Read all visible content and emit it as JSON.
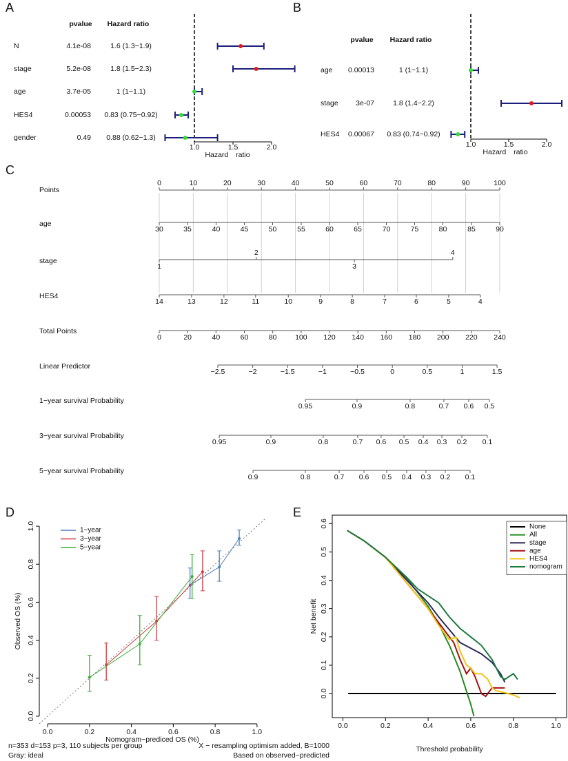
{
  "chart_data": [
    {
      "type": "forest",
      "panel": "A",
      "columns": [
        "pvalue",
        "Hazard ratio"
      ],
      "categories": [
        "N",
        "stage",
        "age",
        "HES4",
        "gender"
      ],
      "pvalues": [
        "4.1e-08",
        "5.2e-08",
        "3.7e-05",
        "0.00053",
        "0.49"
      ],
      "values": [
        1.6,
        1.8,
        1,
        0.83,
        0.88
      ],
      "value_labels": [
        "1.6 (1.3−1.9)",
        "1.8 (1.5−2.3)",
        "1 (1−1.1)",
        "0.83 (0.75−0.92)",
        "0.88 (0.62−1.3)"
      ],
      "lower": [
        1.3,
        1.5,
        1,
        0.75,
        0.62
      ],
      "upper": [
        1.9,
        2.3,
        1.1,
        0.92,
        1.3
      ],
      "point_colors": [
        "#e41a1c",
        "#e41a1c",
        "#33dd33",
        "#33dd33",
        "#33dd33"
      ],
      "ci_color": "#1a1f7a",
      "ref": 1,
      "xlim": [
        0.6,
        2.35
      ],
      "xticks": [
        {
          "value": 1,
          "label": "1.0"
        },
        {
          "value": 1.5,
          "label": "1.5"
        },
        {
          "value": 2,
          "label": "2.0"
        }
      ],
      "xlabel": "Hazard ratio"
    },
    {
      "type": "forest",
      "panel": "B",
      "columns": [
        "pvalue",
        "Hazard ratio"
      ],
      "categories": [
        "age",
        "stage",
        "HES4"
      ],
      "pvalues": [
        "0.00013",
        "3e-07",
        "0.00067"
      ],
      "values": [
        1,
        1.8,
        0.83
      ],
      "value_labels": [
        "1 (1−1.1)",
        "1.8 (1.4−2.2)",
        "0.83 (0.74−0.92)"
      ],
      "lower": [
        1,
        1.4,
        0.74
      ],
      "upper": [
        1.1,
        2.2,
        0.92
      ],
      "point_colors": [
        "#33dd33",
        "#e41a1c",
        "#33dd33"
      ],
      "ci_color": "#1a1f7a",
      "ref": 1,
      "xlim": [
        0.7,
        2.25
      ],
      "xticks": [
        {
          "value": 1,
          "label": "1.0"
        },
        {
          "value": 1.5,
          "label": "1.5"
        },
        {
          "value": 2,
          "label": "2.0"
        }
      ],
      "xlabel": "Hazard ratio"
    },
    {
      "type": "nomogram",
      "panel": "C",
      "points_lim": [
        0,
        100
      ],
      "total_lim": [
        0,
        240
      ],
      "grid": true,
      "rows": [
        {
          "name": "Points",
          "axis": "points",
          "ticks": [
            0,
            10,
            20,
            30,
            40,
            50,
            60,
            70,
            80,
            90,
            100
          ]
        },
        {
          "name": "age",
          "axis": "points",
          "ticks": [
            30,
            35,
            40,
            45,
            50,
            55,
            60,
            65,
            70,
            75,
            80,
            85,
            90
          ],
          "at": [
            0,
            8.3,
            16.7,
            25,
            33.3,
            41.7,
            50,
            58.3,
            66.7,
            75,
            83.3,
            91.7,
            100
          ]
        },
        {
          "name": "stage",
          "axis": "points",
          "ticks": [
            1,
            2,
            3,
            4
          ],
          "at": [
            0,
            28.5,
            57.3,
            86.2
          ],
          "label_side": [
            "below",
            "above",
            "below",
            "above"
          ]
        },
        {
          "name": "HES4",
          "axis": "points",
          "ticks": [
            14,
            13,
            12,
            11,
            10,
            9,
            8,
            7,
            6,
            5,
            4
          ],
          "at": [
            0,
            9.5,
            19,
            28.3,
            37.9,
            47.4,
            56.7,
            66.2,
            75.5,
            85,
            94.3
          ]
        },
        {
          "name": "Total Points",
          "axis": "total",
          "ticks": [
            0,
            20,
            40,
            60,
            80,
            100,
            120,
            140,
            160,
            180,
            200,
            220,
            240
          ]
        },
        {
          "name": "Linear Predictor",
          "axis": "total",
          "ticks": [
            {
              "value": -2.5,
              "label": "−2.5"
            },
            {
              "value": -2,
              "label": "−2"
            },
            {
              "value": -1.5,
              "label": "−1.5"
            },
            {
              "value": -1,
              "label": "−1"
            },
            {
              "value": -0.5,
              "label": "−0.5"
            },
            0,
            0.5,
            1,
            1.5
          ],
          "at": [
            41.3,
            65.9,
            90.5,
            115.1,
            139.7,
            164.3,
            188.9,
            213.5,
            238.1
          ]
        },
        {
          "name": "1−year survival Probability",
          "axis": "total",
          "ticks": [
            0.95,
            0.9,
            0.8,
            0.7,
            0.6,
            0.5
          ],
          "at": [
            103,
            139.4,
            176.8,
            200.6,
            218.1,
            232.7
          ]
        },
        {
          "name": "3−year survival Probability",
          "axis": "total",
          "ticks": [
            0.95,
            0.9,
            0.8,
            0.7,
            0.6,
            0.5,
            0.4,
            0.3,
            0.2,
            0.1
          ],
          "at": [
            42.3,
            78.7,
            115.6,
            139.9,
            156.4,
            172.5,
            186.1,
            199.2,
            213.3,
            231.2
          ]
        },
        {
          "name": "5−year survival Probability",
          "axis": "total",
          "ticks": [
            0.9,
            0.8,
            0.7,
            0.6,
            0.5,
            0.4,
            0.3,
            0.2,
            0.1
          ],
          "at": [
            66.1,
            103,
            126.8,
            144.3,
            160.3,
            174.4,
            188,
            201.6,
            219.1
          ]
        }
      ]
    },
    {
      "type": "calibration",
      "panel": "D",
      "xlabel": "Nomogram−prediced OS (%)",
      "ylabel": "Observed OS (%)",
      "xlim": [
        -0.04,
        1.04
      ],
      "ylim": [
        -0.04,
        1.04
      ],
      "xticks": [
        {
          "value": 0,
          "label": "0.0"
        },
        0.2,
        0.4,
        0.6,
        0.8,
        {
          "value": 1,
          "label": "1.0"
        }
      ],
      "yticks": [
        {
          "value": 0,
          "label": "0.0"
        },
        0.2,
        0.4,
        0.6,
        0.8,
        {
          "value": 1,
          "label": "1.0"
        }
      ],
      "ideal_color": "#777777",
      "legend": "top-left",
      "series": [
        {
          "name": "1−year",
          "color": "#4f81bd",
          "x": [
            0.68,
            0.82,
            0.915
          ],
          "values": [
            0.69,
            0.785,
            0.935
          ],
          "lower": [
            0.62,
            0.71,
            0.9
          ],
          "upper": [
            0.78,
            0.87,
            0.98
          ]
        },
        {
          "name": "3−year",
          "color": "#d0393e",
          "x": [
            0.28,
            0.52,
            0.74
          ],
          "values": [
            0.27,
            0.5,
            0.76
          ],
          "lower": [
            0.19,
            0.4,
            0.66
          ],
          "upper": [
            0.385,
            0.63,
            0.87
          ]
        },
        {
          "name": "5−year",
          "color": "#3cae3c",
          "x": [
            0.2,
            0.44,
            0.69
          ],
          "values": [
            0.205,
            0.38,
            0.735
          ],
          "lower": [
            0.13,
            0.27,
            0.62
          ],
          "upper": [
            0.32,
            0.53,
            0.85
          ]
        }
      ],
      "notes": [
        "n=353 d=153 p=3, 110 subjects per group",
        "Gray: ideal",
        "X − resampling optimism added, B=1000",
        "Based on observed−predicted"
      ]
    },
    {
      "type": "line",
      "panel": "E",
      "xlabel": "Threshold probability",
      "ylabel": "Net benefit",
      "xlim": [
        -0.05,
        1.05
      ],
      "ylim": [
        -0.085,
        0.63
      ],
      "box": true,
      "legend": "top-right",
      "xticks": [
        {
          "value": 0,
          "label": "0.0"
        },
        0.2,
        0.4,
        0.6,
        0.8,
        {
          "value": 1,
          "label": "1.0"
        }
      ],
      "yticks": [
        {
          "value": 0,
          "label": "0.0"
        },
        0.1,
        0.2,
        0.3,
        0.4,
        0.5,
        0.6
      ],
      "series": [
        {
          "name": "None",
          "color": "#000000",
          "x": [
            0.025,
            1
          ],
          "values": [
            0,
            0
          ]
        },
        {
          "name": "All",
          "color": "#228b22",
          "x": [
            0.02,
            0.1,
            0.2,
            0.3,
            0.4,
            0.45,
            0.5,
            0.55,
            0.6,
            0.615
          ],
          "values": [
            0.576,
            0.539,
            0.481,
            0.407,
            0.308,
            0.245,
            0.17,
            0.078,
            -0.038,
            -0.08
          ]
        },
        {
          "name": "stage",
          "color": "#2b2b5a",
          "x": [
            0.02,
            0.1,
            0.2,
            0.3,
            0.4,
            0.45,
            0.5,
            0.55,
            0.6,
            0.65,
            0.7,
            0.74,
            0.76
          ],
          "values": [
            0.576,
            0.539,
            0.481,
            0.4,
            0.32,
            0.27,
            0.225,
            0.18,
            0.16,
            0.14,
            0.11,
            0.07,
            0.04
          ]
        },
        {
          "name": "age",
          "color": "#a50f15",
          "x": [
            0.02,
            0.1,
            0.2,
            0.3,
            0.4,
            0.45,
            0.5,
            0.52,
            0.55,
            0.58,
            0.6,
            0.62,
            0.65,
            0.67,
            0.7,
            0.73,
            0.76
          ],
          "values": [
            0.576,
            0.539,
            0.481,
            0.39,
            0.3,
            0.25,
            0.2,
            0.18,
            0.12,
            0.07,
            0.09,
            0.06,
            0,
            -0.01,
            0.02,
            0.02,
            0.02
          ]
        },
        {
          "name": "HES4",
          "color": "#f2c318",
          "x": [
            0.02,
            0.1,
            0.2,
            0.3,
            0.4,
            0.45,
            0.5,
            0.53,
            0.55,
            0.58,
            0.6,
            0.62,
            0.65,
            0.68,
            0.7,
            0.72,
            0.75,
            0.8,
            0.83
          ],
          "values": [
            0.576,
            0.539,
            0.48,
            0.39,
            0.3,
            0.24,
            0.19,
            0.2,
            0.15,
            0.1,
            0.09,
            0.07,
            0.07,
            0.05,
            0.02,
            0.01,
            0.005,
            -0.005,
            -0.015
          ]
        },
        {
          "name": "nomogram",
          "color": "#1b7a3e",
          "x": [
            0.02,
            0.1,
            0.2,
            0.3,
            0.35,
            0.4,
            0.45,
            0.5,
            0.55,
            0.6,
            0.65,
            0.7,
            0.74,
            0.76,
            0.78,
            0.8,
            0.82
          ],
          "values": [
            0.576,
            0.539,
            0.481,
            0.41,
            0.37,
            0.345,
            0.32,
            0.27,
            0.23,
            0.2,
            0.17,
            0.12,
            0.06,
            0.05,
            0.06,
            0.07,
            0.05
          ]
        }
      ]
    }
  ]
}
